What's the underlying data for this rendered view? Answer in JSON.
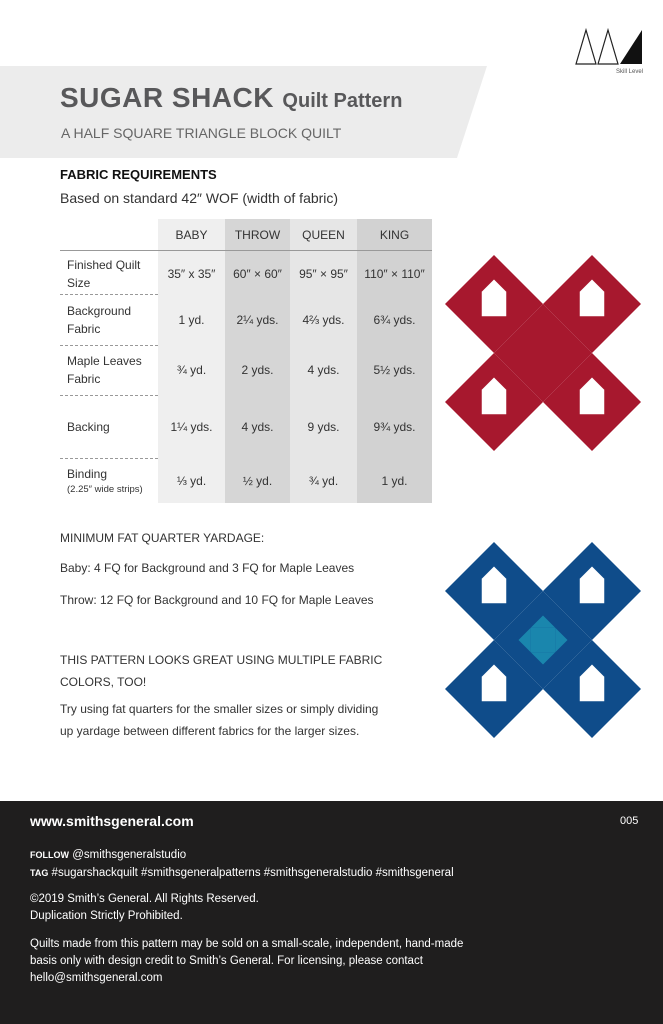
{
  "header": {
    "title": "SUGAR SHACK",
    "title_suffix": "Quilt Pattern",
    "subtitle": "A HALF SQUARE TRIANGLE BLOCK QUILT",
    "skill_label": "Skill Level"
  },
  "fabric_requirements": {
    "heading": "FABRIC REQUIREMENTS",
    "note": "Based on standard 42″ WOF (width of fabric)",
    "table": {
      "columns": [
        "BABY",
        "THROW",
        "QUEEN",
        "KING"
      ],
      "rows": [
        {
          "label": "Finished Quilt Size",
          "cells": [
            "35″ x 35″",
            "60″ × 60″",
            "95″ × 95″",
            "110″ × 110″"
          ]
        },
        {
          "label": "Background Fabric",
          "cells": [
            "1 yd.",
            "2¼ yds.",
            "4⅔ yds.",
            "6¾ yds."
          ]
        },
        {
          "label": "Maple Leaves Fabric",
          "cells": [
            "¾ yd.",
            "2 yds.",
            "4 yds.",
            "5½ yds."
          ]
        },
        {
          "label": "Backing",
          "cells": [
            "1¼ yds.",
            "4 yds.",
            "9 yds.",
            "9¾ yds."
          ]
        },
        {
          "label": "Binding",
          "sublabel": "(2.25″ wide strips)",
          "cells": [
            "⅓ yd.",
            "½ yd.",
            "¾ yd.",
            "1 yd."
          ]
        }
      ]
    }
  },
  "notes": {
    "heading": "MINIMUM FAT QUARTER YARDAGE:",
    "baby": "Baby: 4 FQ for Background and 3 FQ for Maple Leaves",
    "throw": "Throw: 12 FQ for Background and 10 FQ for Maple Leaves",
    "colors": "THIS PATTERN LOOKS GREAT USING MULTIPLE FABRIC COLORS, TOO!",
    "tip": "Try using fat quarters for the smaller sizes or simply dividing up yardage between different fabrics for the larger sizes."
  },
  "footer": {
    "website": "www.smithsgeneral.com",
    "page_number": "005",
    "follow_label": "FOLLOW",
    "follow_handle": "@smithsgeneralstudio",
    "tag_label": "TAG",
    "tags": "#sugarshackquilt #smithsgeneralpatterns #smithsgeneralstudio #smithsgeneral",
    "copyright": "©2019 Smith’s General. All Rights Reserved.",
    "duplication": "Duplication Strictly Prohibited.",
    "license": "Quilts made from this pattern may be sold on a small-scale, independent, hand-made basis only with design credit to Smith’s General. For licensing, please contact hello@smithsgeneral.com"
  }
}
